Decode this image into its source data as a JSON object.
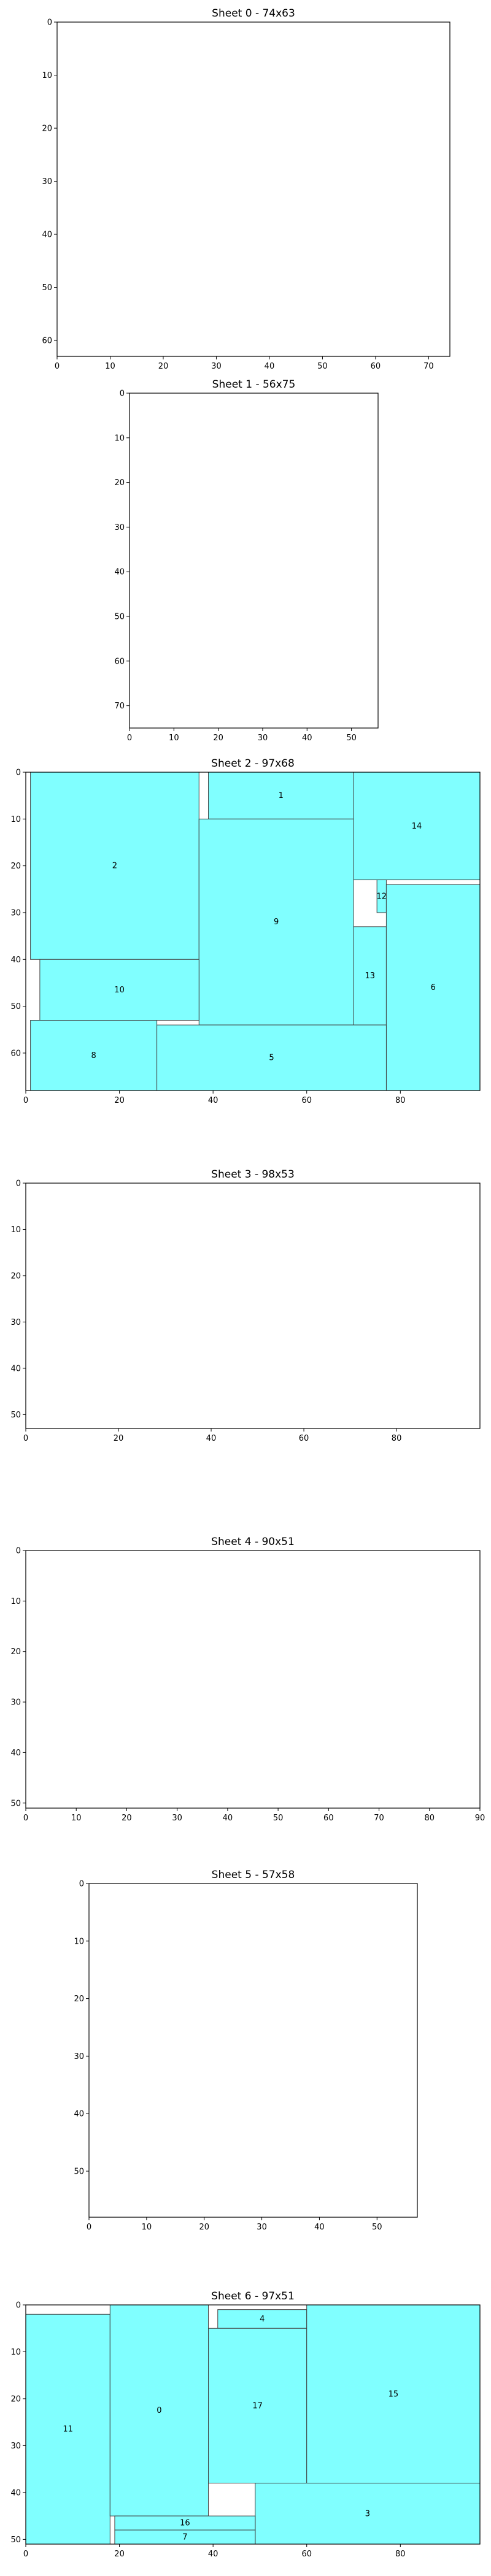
{
  "figure": {
    "colors": {
      "piece_fill": "#80ffff",
      "piece_stroke": "#404040",
      "axis": "#000000"
    }
  },
  "chart_data": [
    {
      "type": "rect-packing",
      "title": "Sheet 0 - 74x63",
      "sheet_width": 74,
      "sheet_height": 63,
      "xlim": [
        0,
        74
      ],
      "ylim": [
        0,
        63
      ],
      "y_inverted": true,
      "xticks": [
        0,
        10,
        20,
        30,
        40,
        50,
        60,
        70
      ],
      "yticks": [
        0,
        10,
        20,
        30,
        40,
        50,
        60
      ],
      "pieces": []
    },
    {
      "type": "rect-packing",
      "title": "Sheet 1 - 56x75",
      "sheet_width": 56,
      "sheet_height": 75,
      "xlim": [
        0,
        56
      ],
      "ylim": [
        0,
        75
      ],
      "y_inverted": true,
      "xticks": [
        0,
        10,
        20,
        30,
        40,
        50
      ],
      "yticks": [
        0,
        10,
        20,
        30,
        40,
        50,
        60,
        70
      ],
      "pieces": []
    },
    {
      "type": "rect-packing",
      "title": "Sheet 2 - 97x68",
      "sheet_width": 97,
      "sheet_height": 68,
      "xlim": [
        0,
        97
      ],
      "ylim": [
        0,
        68
      ],
      "y_inverted": true,
      "xticks": [
        0,
        20,
        40,
        60,
        80
      ],
      "yticks": [
        0,
        10,
        20,
        30,
        40,
        50,
        60
      ],
      "pieces": [
        {
          "id": "1",
          "x": 39,
          "y": 0,
          "w": 31,
          "h": 10
        },
        {
          "id": "2",
          "x": 1,
          "y": 0,
          "w": 36,
          "h": 40
        },
        {
          "id": "14",
          "x": 70,
          "y": 0,
          "w": 27,
          "h": 23
        },
        {
          "id": "9",
          "x": 37,
          "y": 10,
          "w": 33,
          "h": 44
        },
        {
          "id": "12",
          "x": 75,
          "y": 23,
          "w": 2,
          "h": 7
        },
        {
          "id": "13",
          "x": 70,
          "y": 33,
          "w": 7,
          "h": 21
        },
        {
          "id": "6",
          "x": 77,
          "y": 24,
          "w": 20,
          "h": 44
        },
        {
          "id": "10",
          "x": 3,
          "y": 40,
          "w": 34,
          "h": 13
        },
        {
          "id": "8",
          "x": 1,
          "y": 53,
          "w": 27,
          "h": 15
        },
        {
          "id": "5",
          "x": 28,
          "y": 54,
          "w": 49,
          "h": 14
        }
      ]
    },
    {
      "type": "rect-packing",
      "title": "Sheet 3 - 98x53",
      "sheet_width": 98,
      "sheet_height": 53,
      "xlim": [
        0,
        98
      ],
      "ylim": [
        0,
        53
      ],
      "y_inverted": true,
      "xticks": [
        0,
        20,
        40,
        60,
        80
      ],
      "yticks": [
        0,
        10,
        20,
        30,
        40,
        50
      ],
      "pieces": []
    },
    {
      "type": "rect-packing",
      "title": "Sheet 4 - 90x51",
      "sheet_width": 90,
      "sheet_height": 51,
      "xlim": [
        0,
        90
      ],
      "ylim": [
        0,
        51
      ],
      "y_inverted": true,
      "xticks": [
        0,
        10,
        20,
        30,
        40,
        50,
        60,
        70,
        80,
        90
      ],
      "yticks": [
        0,
        10,
        20,
        30,
        40,
        50
      ],
      "pieces": []
    },
    {
      "type": "rect-packing",
      "title": "Sheet 5 - 57x58",
      "sheet_width": 57,
      "sheet_height": 58,
      "xlim": [
        0,
        57
      ],
      "ylim": [
        0,
        58
      ],
      "y_inverted": true,
      "xticks": [
        0,
        10,
        20,
        30,
        40,
        50
      ],
      "yticks": [
        0,
        10,
        20,
        30,
        40,
        50
      ],
      "pieces": []
    },
    {
      "type": "rect-packing",
      "title": "Sheet 6 - 97x51",
      "sheet_width": 97,
      "sheet_height": 51,
      "xlim": [
        0,
        97
      ],
      "ylim": [
        0,
        51
      ],
      "y_inverted": true,
      "xticks": [
        0,
        20,
        40,
        60,
        80
      ],
      "yticks": [
        0,
        10,
        20,
        30,
        40,
        50
      ],
      "pieces": [
        {
          "id": "11",
          "x": 0,
          "y": 2,
          "w": 18,
          "h": 49
        },
        {
          "id": "0",
          "x": 18,
          "y": 0,
          "w": 21,
          "h": 45
        },
        {
          "id": "4",
          "x": 41,
          "y": 1,
          "w": 19,
          "h": 4
        },
        {
          "id": "17",
          "x": 39,
          "y": 5,
          "w": 21,
          "h": 33
        },
        {
          "id": "15",
          "x": 60,
          "y": 0,
          "w": 37,
          "h": 38
        },
        {
          "id": "3",
          "x": 49,
          "y": 38,
          "w": 48,
          "h": 13
        },
        {
          "id": "16",
          "x": 19,
          "y": 45,
          "w": 30,
          "h": 3
        },
        {
          "id": "7",
          "x": 19,
          "y": 48,
          "w": 30,
          "h": 3
        }
      ]
    }
  ]
}
